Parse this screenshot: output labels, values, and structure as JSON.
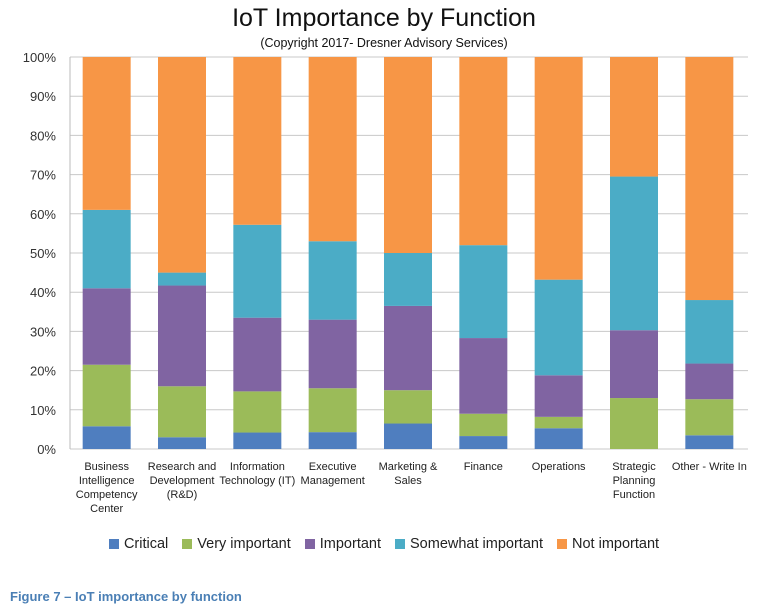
{
  "chart_data": {
    "type": "bar",
    "stacked": true,
    "title": "IoT Importance by Function",
    "subtitle": "(Copyright 2017- Dresner Advisory Services)",
    "xlabel": "",
    "ylabel": "",
    "ylim": [
      0,
      100
    ],
    "yticks": [
      "0%",
      "10%",
      "20%",
      "30%",
      "40%",
      "50%",
      "60%",
      "70%",
      "80%",
      "90%",
      "100%"
    ],
    "grid": true,
    "legend_position": "bottom",
    "categories": [
      "Business Intelligence Competency Center",
      "Research and Development (R&D)",
      "Information Technology (IT)",
      "Executive Management",
      "Marketing & Sales",
      "Finance",
      "Operations",
      "Strategic Planning Function",
      "Other - Write In"
    ],
    "series": [
      {
        "name": "Critical",
        "color": "#4f7ebf",
        "values": [
          5.8,
          3.0,
          4.2,
          4.3,
          6.5,
          3.3,
          5.3,
          0.0,
          3.5
        ]
      },
      {
        "name": "Very important",
        "color": "#9bbb59",
        "values": [
          15.7,
          13.0,
          10.5,
          11.2,
          8.5,
          5.7,
          2.9,
          13.0,
          9.2
        ]
      },
      {
        "name": "Important",
        "color": "#8064a2",
        "values": [
          19.5,
          25.7,
          18.8,
          17.5,
          21.5,
          19.3,
          10.6,
          17.3,
          9.1
        ]
      },
      {
        "name": "Somewhat important",
        "color": "#4bacc6",
        "values": [
          20.0,
          3.3,
          23.7,
          20.0,
          13.5,
          23.7,
          24.4,
          39.2,
          16.2
        ]
      },
      {
        "name": "Not important",
        "color": "#f79646",
        "values": [
          39.0,
          55.0,
          42.8,
          47.0,
          50.0,
          48.0,
          56.8,
          30.5,
          62.0
        ]
      }
    ]
  },
  "caption": "Figure 7 – IoT importance by function"
}
